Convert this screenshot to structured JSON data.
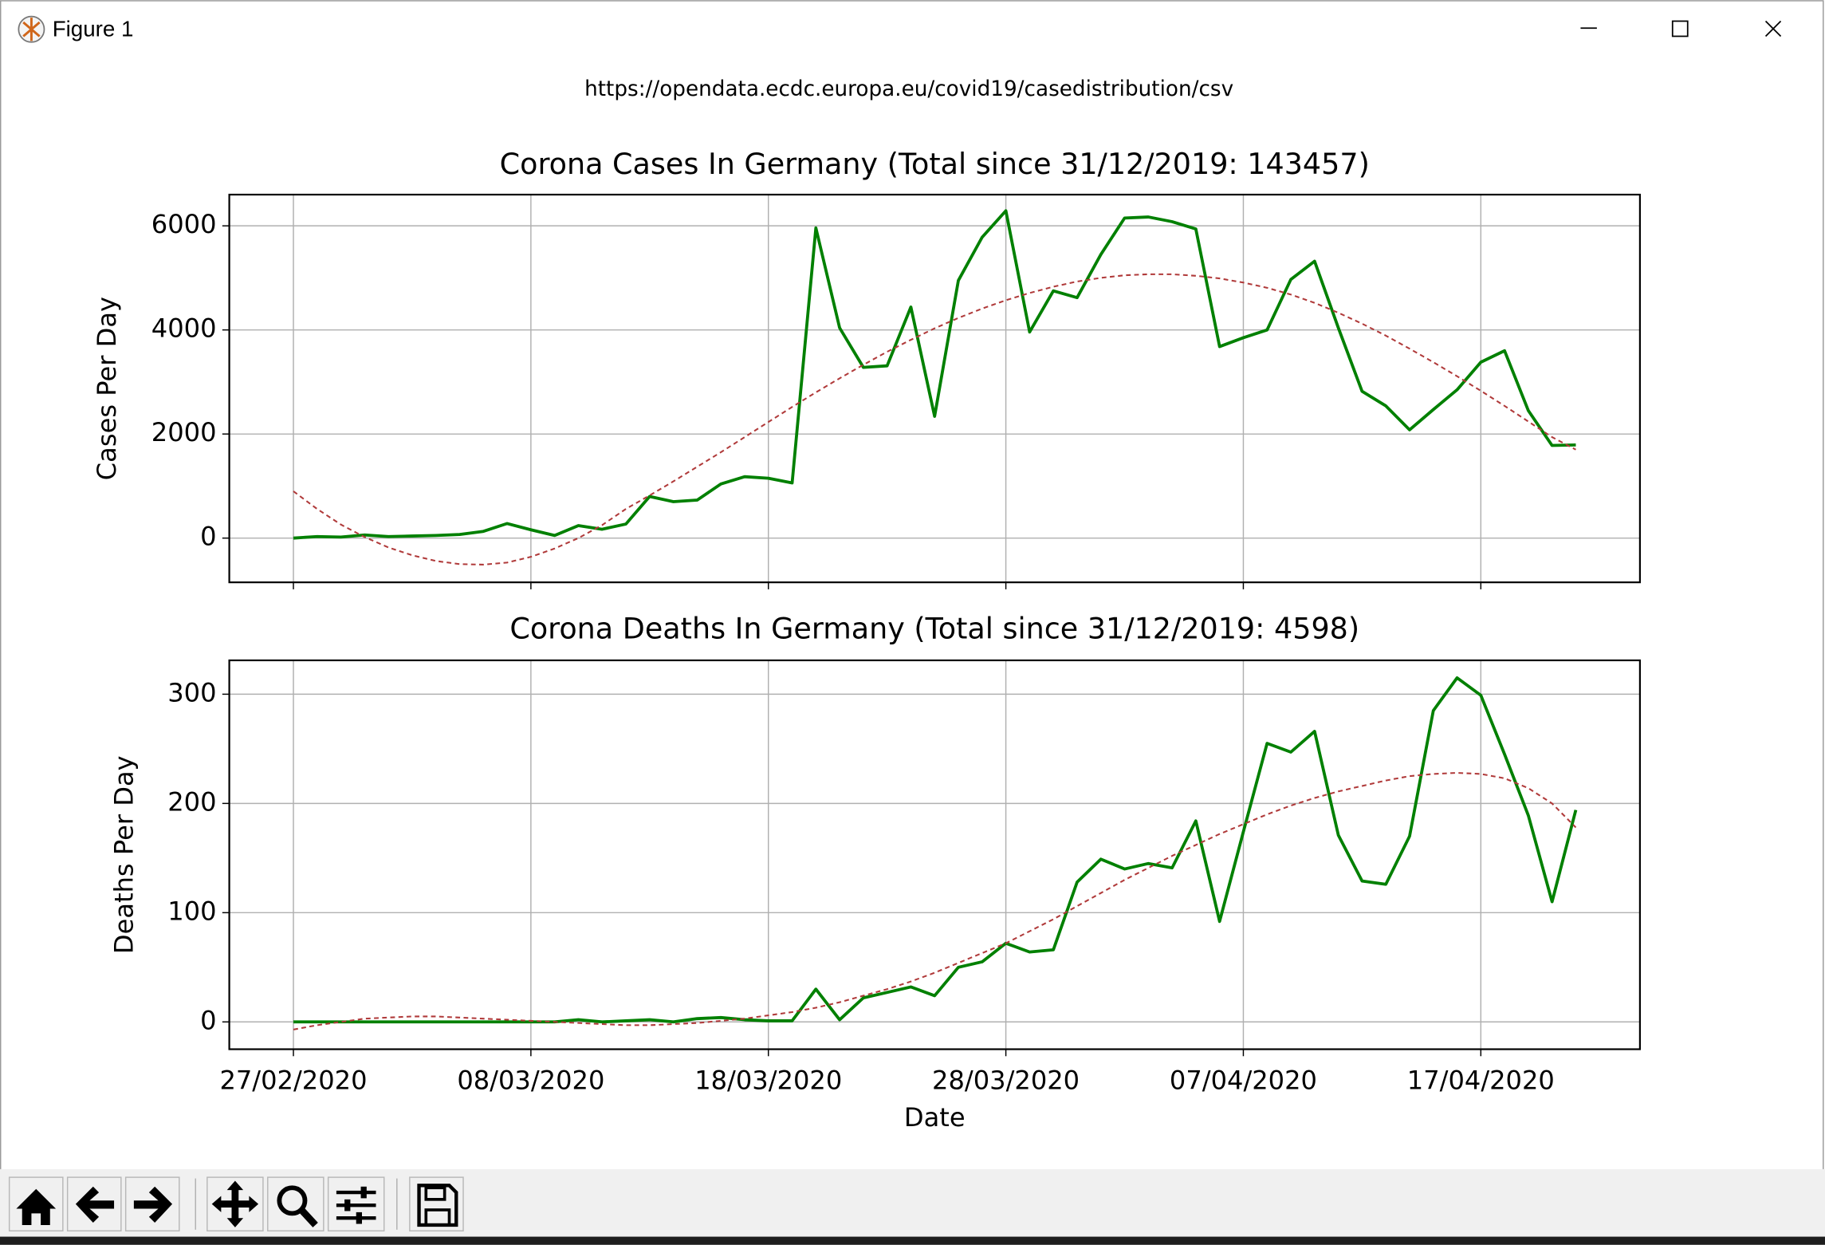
{
  "window_title": "Figure 1",
  "figure_title": "https://opendata.ecdc.europa.eu/covid19/casedistribution/csv",
  "chart_data": [
    {
      "type": "line",
      "title": "Corona Cases In Germany (Total since 31/12/2019: 143457)",
      "ylabel": "Cases Per Day",
      "x": [
        "2020-02-27",
        "2020-02-28",
        "2020-02-29",
        "2020-03-01",
        "2020-03-02",
        "2020-03-03",
        "2020-03-04",
        "2020-03-05",
        "2020-03-06",
        "2020-03-07",
        "2020-03-08",
        "2020-03-09",
        "2020-03-10",
        "2020-03-11",
        "2020-03-12",
        "2020-03-13",
        "2020-03-14",
        "2020-03-15",
        "2020-03-16",
        "2020-03-17",
        "2020-03-18",
        "2020-03-19",
        "2020-03-20",
        "2020-03-21",
        "2020-03-22",
        "2020-03-23",
        "2020-03-24",
        "2020-03-25",
        "2020-03-26",
        "2020-03-27",
        "2020-03-28",
        "2020-03-29",
        "2020-03-30",
        "2020-03-31",
        "2020-04-01",
        "2020-04-02",
        "2020-04-03",
        "2020-04-04",
        "2020-04-05",
        "2020-04-06",
        "2020-04-07",
        "2020-04-08",
        "2020-04-09",
        "2020-04-10",
        "2020-04-11",
        "2020-04-12",
        "2020-04-13",
        "2020-04-14",
        "2020-04-15",
        "2020-04-16",
        "2020-04-17",
        "2020-04-18",
        "2020-04-19",
        "2020-04-20",
        "2020-04-21"
      ],
      "series": [
        {
          "color": "#008000",
          "values": [
            0,
            30,
            20,
            60,
            30,
            40,
            50,
            70,
            130,
            280,
            160,
            50,
            240,
            170,
            270,
            800,
            700,
            730,
            1040,
            1180,
            1150,
            1060,
            5960,
            4040,
            3280,
            3310,
            4440,
            2340,
            4950,
            5780,
            6290,
            3960,
            4750,
            4620,
            5450,
            6150,
            6170,
            6080,
            5940,
            3680,
            3850,
            4000,
            4970,
            5320,
            4040,
            2820,
            2540,
            2080,
            2470,
            2850,
            3380,
            3600,
            2450,
            1780,
            1790
          ]
        },
        {
          "color": "#b03a3a",
          "dashed": true,
          "values": [
            900,
            560,
            260,
            20,
            -180,
            -330,
            -440,
            -500,
            -510,
            -470,
            -360,
            -200,
            0,
            250,
            560,
            820,
            1090,
            1370,
            1650,
            1940,
            2230,
            2520,
            2800,
            3070,
            3330,
            3580,
            3810,
            4030,
            4230,
            4410,
            4570,
            4710,
            4830,
            4930,
            5000,
            5050,
            5070,
            5070,
            5040,
            4990,
            4910,
            4810,
            4680,
            4520,
            4330,
            4120,
            3890,
            3640,
            3380,
            3110,
            2830,
            2540,
            2240,
            1940,
            1700
          ]
        }
      ],
      "xlim": [
        "2020-02-24T07:12Z",
        "2020-04-23T16:48Z"
      ],
      "xticks": [
        "2020-02-27",
        "2020-03-08",
        "2020-03-18",
        "2020-03-28",
        "2020-04-07",
        "2020-04-17"
      ],
      "ylim": [
        -850,
        6600
      ],
      "yticks": [
        0,
        2000,
        4000,
        6000
      ],
      "grid": true
    },
    {
      "type": "line",
      "title": "Corona Deaths In Germany (Total since 31/12/2019: 4598)",
      "xlabel": "Date",
      "ylabel": "Deaths Per Day",
      "x": [
        "2020-02-27",
        "2020-02-28",
        "2020-02-29",
        "2020-03-01",
        "2020-03-02",
        "2020-03-03",
        "2020-03-04",
        "2020-03-05",
        "2020-03-06",
        "2020-03-07",
        "2020-03-08",
        "2020-03-09",
        "2020-03-10",
        "2020-03-11",
        "2020-03-12",
        "2020-03-13",
        "2020-03-14",
        "2020-03-15",
        "2020-03-16",
        "2020-03-17",
        "2020-03-18",
        "2020-03-19",
        "2020-03-20",
        "2020-03-21",
        "2020-03-22",
        "2020-03-23",
        "2020-03-24",
        "2020-03-25",
        "2020-03-26",
        "2020-03-27",
        "2020-03-28",
        "2020-03-29",
        "2020-03-30",
        "2020-03-31",
        "2020-04-01",
        "2020-04-02",
        "2020-04-03",
        "2020-04-04",
        "2020-04-05",
        "2020-04-06",
        "2020-04-07",
        "2020-04-08",
        "2020-04-09",
        "2020-04-10",
        "2020-04-11",
        "2020-04-12",
        "2020-04-13",
        "2020-04-14",
        "2020-04-15",
        "2020-04-16",
        "2020-04-17",
        "2020-04-18",
        "2020-04-19",
        "2020-04-20",
        "2020-04-21"
      ],
      "series": [
        {
          "color": "#008000",
          "values": [
            0,
            0,
            0,
            0,
            0,
            0,
            0,
            0,
            0,
            0,
            0,
            0,
            2,
            0,
            1,
            2,
            0,
            3,
            4,
            2,
            1,
            1,
            30,
            2,
            22,
            27,
            32,
            24,
            50,
            55,
            72,
            64,
            66,
            128,
            149,
            140,
            145,
            141,
            184,
            92,
            174,
            255,
            247,
            266,
            171,
            129,
            126,
            170,
            285,
            315,
            299,
            245,
            189,
            110,
            194
          ]
        },
        {
          "color": "#b03a3a",
          "dashed": true,
          "values": [
            -7,
            -3,
            0,
            3,
            4,
            5,
            5,
            4,
            3,
            2,
            1,
            0,
            -1,
            -2,
            -3,
            -3,
            -2,
            -1,
            1,
            3,
            6,
            9,
            13,
            18,
            24,
            30,
            37,
            45,
            54,
            63,
            72,
            83,
            94,
            106,
            118,
            130,
            141,
            152,
            162,
            172,
            181,
            190,
            198,
            205,
            211,
            216,
            221,
            225,
            227,
            228,
            227,
            223,
            214,
            200,
            178
          ]
        }
      ],
      "xlim": [
        "2020-02-24T07:12Z",
        "2020-04-23T16:48Z"
      ],
      "xticks": [
        {
          "value": "2020-02-27",
          "label": "27/02/2020"
        },
        {
          "value": "2020-03-08",
          "label": "08/03/2020"
        },
        {
          "value": "2020-03-18",
          "label": "18/03/2020"
        },
        {
          "value": "2020-03-28",
          "label": "28/03/2020"
        },
        {
          "value": "2020-04-07",
          "label": "07/04/2020"
        },
        {
          "value": "2020-04-17",
          "label": "17/04/2020"
        }
      ],
      "ylim": [
        -25,
        331
      ],
      "yticks": [
        0,
        100,
        200,
        300
      ],
      "grid": true
    }
  ]
}
